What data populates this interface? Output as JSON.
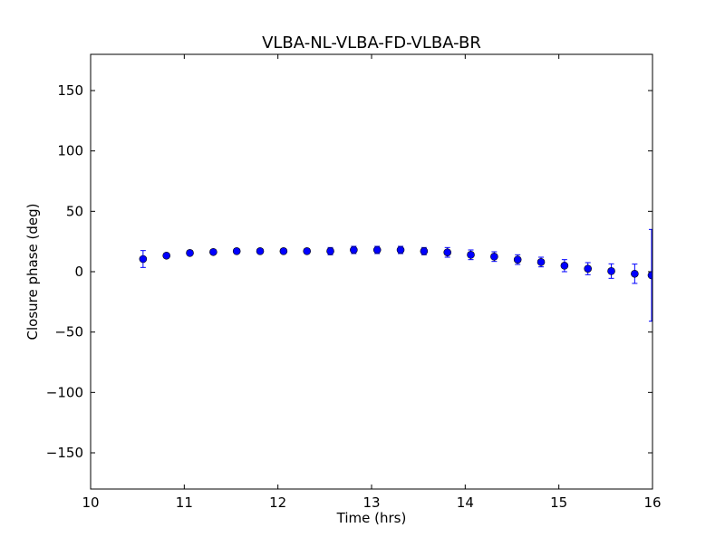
{
  "chart_data": {
    "type": "scatter",
    "title": "VLBA-NL-VLBA-FD-VLBA-BR",
    "xlabel": "Time (hrs)",
    "ylabel": "Closure phase (deg)",
    "xlim": [
      10,
      16
    ],
    "ylim": [
      -180,
      180
    ],
    "xticks": [
      10,
      11,
      12,
      13,
      14,
      15,
      16
    ],
    "yticks": [
      -150,
      -100,
      -50,
      0,
      50,
      100,
      150
    ],
    "ytick_labels": [
      "−150",
      "−100",
      "−50",
      "0",
      "50",
      "100",
      "150"
    ],
    "grid": false,
    "marker_color": "#0000ff",
    "series": [
      {
        "name": "closure phase",
        "x": [
          10.56,
          10.81,
          11.06,
          11.31,
          11.56,
          11.81,
          12.06,
          12.31,
          12.56,
          12.81,
          13.06,
          13.31,
          13.56,
          13.81,
          14.06,
          14.31,
          14.56,
          14.81,
          15.06,
          15.31,
          15.56,
          15.81,
          15.99
        ],
        "y": [
          10.5,
          13.3,
          15.5,
          16.3,
          17,
          17,
          17,
          17,
          17,
          18,
          18,
          18,
          17,
          16,
          14,
          12.5,
          10,
          8,
          5,
          2.5,
          0.5,
          -1.7,
          -3
        ],
        "yerr": [
          7,
          2,
          2,
          2,
          2,
          2,
          2,
          2,
          3,
          3,
          3,
          3,
          3,
          4,
          4,
          4,
          4,
          4,
          5,
          5,
          6,
          8,
          38
        ]
      }
    ]
  }
}
